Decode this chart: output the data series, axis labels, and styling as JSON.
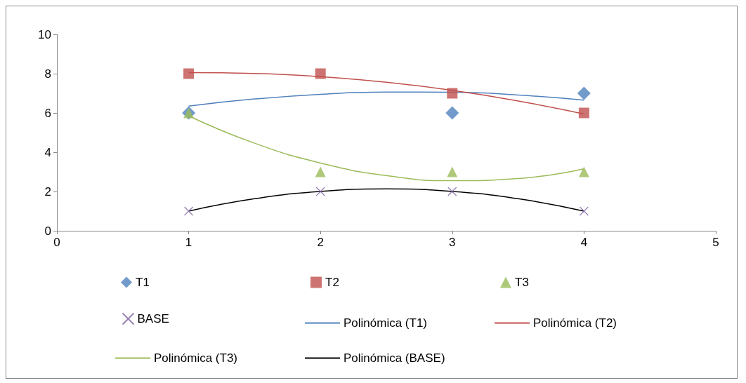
{
  "chart_data": {
    "type": "scatter",
    "xlim": [
      0,
      5
    ],
    "xticks": [
      0,
      1,
      2,
      3,
      4,
      5
    ],
    "ylim": [
      0,
      10
    ],
    "yticks": [
      0,
      2,
      4,
      6,
      8,
      10
    ],
    "grid": false,
    "legend": "bottom",
    "series": [
      {
        "name": "T1",
        "color": "#4f81bd",
        "marker": "diamond",
        "x": [
          1,
          2,
          3,
          4
        ],
        "values": [
          6,
          null,
          6,
          7
        ]
      },
      {
        "name": "T2",
        "color": "#c0504d",
        "marker": "square",
        "x": [
          1,
          2,
          3,
          4
        ],
        "values": [
          8,
          8,
          7,
          6
        ]
      },
      {
        "name": "T3",
        "color": "#9bbb59",
        "marker": "triangle",
        "x": [
          1,
          2,
          3,
          4
        ],
        "values": [
          6,
          3,
          3,
          3
        ]
      },
      {
        "name": "BASE",
        "color": "#8064a2",
        "marker": "cross",
        "x": [
          1,
          2,
          3,
          4
        ],
        "values": [
          1,
          2,
          2,
          1
        ]
      },
      {
        "name": "Polinómica (T1)",
        "type": "line",
        "color": "#4f81bd",
        "marker": "none",
        "x": [
          1,
          1.5,
          2,
          2.5,
          3,
          3.5,
          4
        ],
        "values": [
          6.35,
          6.71,
          6.95,
          7.06,
          7.05,
          6.91,
          6.65
        ]
      },
      {
        "name": "Polinómica (T2)",
        "type": "line",
        "color": "#c0504d",
        "marker": "none",
        "x": [
          1,
          1.5,
          2,
          2.5,
          3,
          3.5,
          4
        ],
        "values": [
          8.05,
          8.01,
          7.85,
          7.56,
          7.15,
          6.61,
          5.95
        ]
      },
      {
        "name": "Polinómica (T3)",
        "type": "line",
        "color": "#9bbb59",
        "marker": "none",
        "x": [
          1,
          1.5,
          2,
          2.5,
          3,
          3.5,
          4
        ],
        "values": [
          5.85,
          4.46,
          3.45,
          2.81,
          2.55,
          2.66,
          3.15
        ]
      },
      {
        "name": "Polinómica (BASE)",
        "type": "line",
        "color": "#000000",
        "marker": "none",
        "x": [
          1,
          1.5,
          2,
          2.5,
          3,
          3.5,
          4
        ],
        "values": [
          1,
          1.63,
          2,
          2.13,
          2,
          1.63,
          1
        ]
      }
    ]
  }
}
